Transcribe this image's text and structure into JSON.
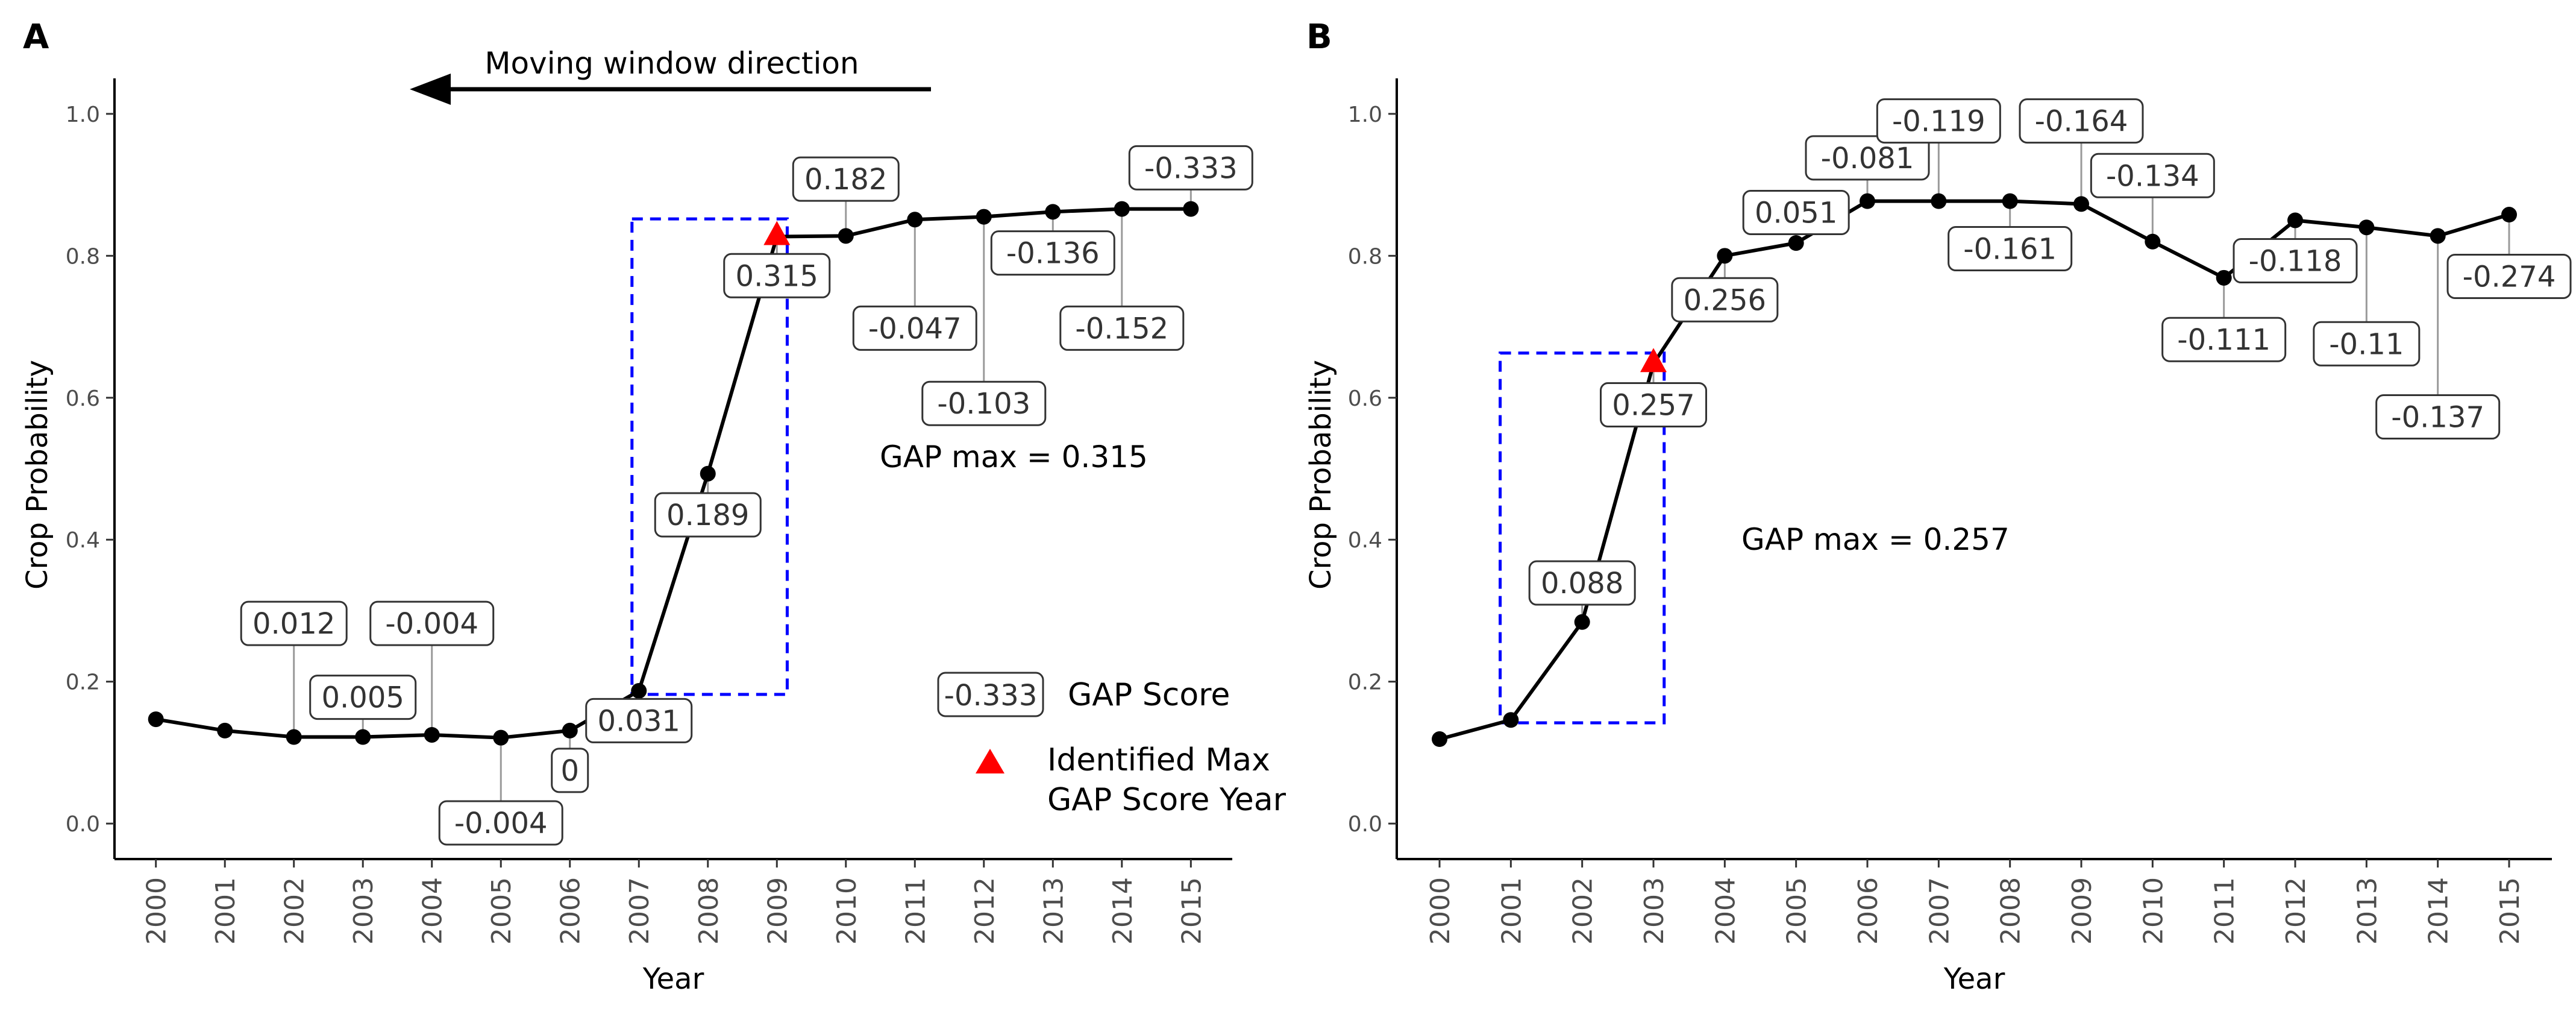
{
  "colors": {
    "line": "#000000",
    "window_box": "#0000ff",
    "max_marker": "#ff0000",
    "label_border": "#333333",
    "leader": "#9a9a9a",
    "tick_text": "#4d4d4d"
  },
  "legend": {
    "score_sample": "-0.333",
    "score_label": "GAP Score",
    "max_label_line1": "Identified Max",
    "max_label_line2": "GAP Score Year"
  },
  "chart_data": [
    {
      "type": "line",
      "panel": "A",
      "annotation": "Moving window direction",
      "gap_max_text": "GAP max = 0.315",
      "xlabel": "Year",
      "ylabel": "Crop Probability",
      "xlim": [
        1999.4,
        2015.6
      ],
      "ylim": [
        -0.05,
        1.05
      ],
      "yticks": [
        "0.0",
        "0.2",
        "0.4",
        "0.6",
        "0.8",
        "1.0"
      ],
      "ytick_values": [
        0.0,
        0.2,
        0.4,
        0.6,
        0.8,
        1.0
      ],
      "x": [
        2000,
        2001,
        2002,
        2003,
        2004,
        2005,
        2006,
        2007,
        2008,
        2009,
        2010,
        2011,
        2012,
        2013,
        2014,
        2015
      ],
      "x_labels": [
        "2000",
        "2001",
        "2002",
        "2003",
        "2004",
        "2005",
        "2006",
        "2007",
        "2008",
        "2009",
        "2010",
        "2011",
        "2012",
        "2013",
        "2014",
        "2015"
      ],
      "y": [
        0.147,
        0.131,
        0.122,
        0.122,
        0.125,
        0.121,
        0.131,
        0.187,
        0.493,
        0.827,
        0.828,
        0.851,
        0.855,
        0.862,
        0.866,
        0.866
      ],
      "max_year": 2009,
      "window": {
        "x0": 2006.9,
        "x1": 2009.15,
        "y0": 0.182,
        "y1": 0.852
      },
      "labels": [
        {
          "year": 2002,
          "text": "0.012",
          "ly": 0.282
        },
        {
          "year": 2003,
          "text": "0.005",
          "ly": 0.178
        },
        {
          "year": 2004,
          "text": "-0.004",
          "ly": 0.282
        },
        {
          "year": 2005,
          "text": "-0.004",
          "ly": 0.001
        },
        {
          "year": 2006,
          "text": "0",
          "ly": 0.075
        },
        {
          "year": 2007,
          "text": "0.031",
          "ly": 0.145
        },
        {
          "year": 2008,
          "text": "0.189",
          "ly": 0.435
        },
        {
          "year": 2009,
          "text": "0.315",
          "ly": 0.772
        },
        {
          "year": 2010,
          "text": "0.182",
          "ly": 0.908
        },
        {
          "year": 2011,
          "text": "-0.047",
          "ly": 0.698
        },
        {
          "year": 2012,
          "text": "-0.103",
          "ly": 0.592
        },
        {
          "year": 2013,
          "text": "-0.136",
          "ly": 0.804
        },
        {
          "year": 2014,
          "text": "-0.152",
          "ly": 0.698
        },
        {
          "year": 2015,
          "text": "-0.333",
          "ly": 0.924
        }
      ]
    },
    {
      "type": "line",
      "panel": "B",
      "gap_max_text": "GAP max = 0.257",
      "xlabel": "Year",
      "ylabel": "Crop Probability",
      "xlim": [
        1999.4,
        2015.6
      ],
      "ylim": [
        -0.05,
        1.05
      ],
      "yticks": [
        "0.0",
        "0.2",
        "0.4",
        "0.6",
        "0.8",
        "1.0"
      ],
      "ytick_values": [
        0.0,
        0.2,
        0.4,
        0.6,
        0.8,
        1.0
      ],
      "x": [
        2000,
        2001,
        2002,
        2003,
        2004,
        2005,
        2006,
        2007,
        2008,
        2009,
        2010,
        2011,
        2012,
        2013,
        2014,
        2015
      ],
      "x_labels": [
        "2000",
        "2001",
        "2002",
        "2003",
        "2004",
        "2005",
        "2006",
        "2007",
        "2008",
        "2009",
        "2010",
        "2011",
        "2012",
        "2013",
        "2014",
        "2015"
      ],
      "y": [
        0.119,
        0.146,
        0.284,
        0.648,
        0.8,
        0.818,
        0.877,
        0.877,
        0.877,
        0.873,
        0.82,
        0.769,
        0.85,
        0.84,
        0.828,
        0.858
      ],
      "max_year": 2003,
      "window": {
        "x0": 2000.85,
        "x1": 2003.15,
        "y0": 0.142,
        "y1": 0.663
      },
      "labels": [
        {
          "year": 2002,
          "text": "0.088",
          "ly": 0.339
        },
        {
          "year": 2003,
          "text": "0.257",
          "ly": 0.59
        },
        {
          "year": 2004,
          "text": "0.256",
          "ly": 0.738
        },
        {
          "year": 2005,
          "text": "0.051",
          "ly": 0.861
        },
        {
          "year": 2006,
          "text": "-0.081",
          "ly": 0.938
        },
        {
          "year": 2007,
          "text": "-0.119",
          "ly": 0.99
        },
        {
          "year": 2008,
          "text": "-0.161",
          "ly": 0.81
        },
        {
          "year": 2009,
          "text": "-0.164",
          "ly": 0.99
        },
        {
          "year": 2010,
          "text": "-0.134",
          "ly": 0.913
        },
        {
          "year": 2011,
          "text": "-0.111",
          "ly": 0.682
        },
        {
          "year": 2012,
          "text": "-0.118",
          "ly": 0.793
        },
        {
          "year": 2013,
          "text": "-0.11",
          "ly": 0.676
        },
        {
          "year": 2014,
          "text": "-0.137",
          "ly": 0.573
        },
        {
          "year": 2015,
          "text": "-0.274",
          "ly": 0.771
        }
      ]
    }
  ]
}
